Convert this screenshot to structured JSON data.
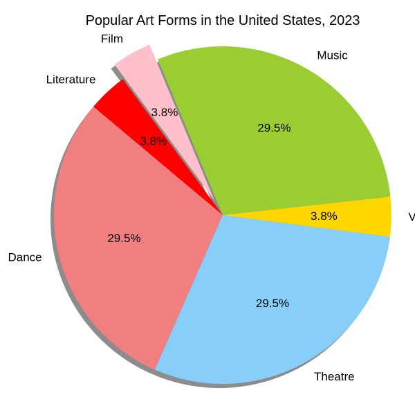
{
  "chart_data": {
    "type": "pie",
    "title": "Popular Art Forms in the United States, 2023",
    "categories": [
      "Dance",
      "Theatre",
      "Visual Arts",
      "Music",
      "Film",
      "Literature"
    ],
    "values": [
      29.5,
      29.5,
      3.8,
      29.5,
      3.8,
      3.8
    ],
    "percent_labels": [
      "29.5%",
      "29.5%",
      "3.8%",
      "29.5%",
      "3.8%",
      "3.8%"
    ],
    "colors": [
      "#f08080",
      "#87cefa",
      "#ffd700",
      "#9acd32",
      "#ffc0cb",
      "#ff0000"
    ],
    "exploded": [
      "Film"
    ],
    "shadow": true
  }
}
